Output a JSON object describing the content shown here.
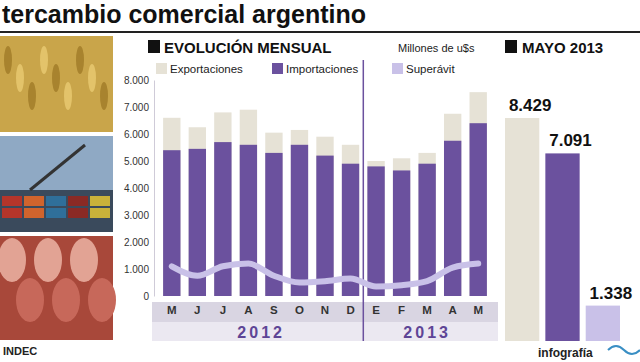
{
  "title": "tercambio comercial argentino",
  "source": "INDEC",
  "credit": "infografía",
  "chart_data": [
    {
      "type": "bar",
      "title": "EVOLUCIÓN MENSUAL",
      "y_label": "Millones de u$s",
      "categories": [
        "M",
        "J",
        "J",
        "A",
        "S",
        "O",
        "N",
        "D",
        "E",
        "F",
        "M",
        "A",
        "M"
      ],
      "x_groups": [
        {
          "label": "2012",
          "start": 0,
          "end": 7
        },
        {
          "label": "2013",
          "start": 8,
          "end": 12
        }
      ],
      "series": [
        {
          "name": "Exportaciones",
          "color": "#e6e2d6",
          "type": "bar",
          "values": [
            6600,
            6250,
            6800,
            6900,
            6050,
            6150,
            5900,
            5600,
            5000,
            5100,
            5300,
            6750,
            7550
          ]
        },
        {
          "name": "Importaciones",
          "color": "#6b519e",
          "type": "bar",
          "values": [
            5400,
            5450,
            5700,
            5600,
            5300,
            5600,
            5200,
            4900,
            4800,
            4650,
            4900,
            5750,
            6400
          ]
        },
        {
          "name": "Superávit",
          "color": "#c9c1e8",
          "type": "line",
          "values": [
            1100,
            750,
            1100,
            1200,
            750,
            500,
            550,
            650,
            350,
            400,
            550,
            1050,
            1200
          ]
        }
      ],
      "ylim": [
        0,
        8000
      ],
      "yticks": [
        0,
        {
          "value": 1000,
          "label": "1.000"
        },
        {
          "value": 2000,
          "label": "2.000"
        },
        {
          "value": 3000,
          "label": "3.000"
        },
        {
          "value": 4000,
          "label": "4.000"
        },
        {
          "value": 5000,
          "label": "5.000"
        },
        {
          "value": 6000,
          "label": "6.000"
        },
        {
          "value": 7000,
          "label": "7.000"
        },
        {
          "value": 8000,
          "label": "8.000"
        }
      ],
      "grid": false,
      "legend": "top"
    },
    {
      "type": "bar",
      "title": "MAYO 2013",
      "categories": [
        null,
        null,
        null
      ],
      "values": [
        8429,
        7091,
        1338
      ],
      "value_labels": [
        "8.429",
        "7.091",
        "1.338"
      ],
      "colors": [
        "#e6e2d6",
        "#6b519e",
        "#c9c1e8"
      ],
      "ylim": [
        0,
        8429
      ],
      "data_labels": true,
      "tick_labels": false
    }
  ]
}
